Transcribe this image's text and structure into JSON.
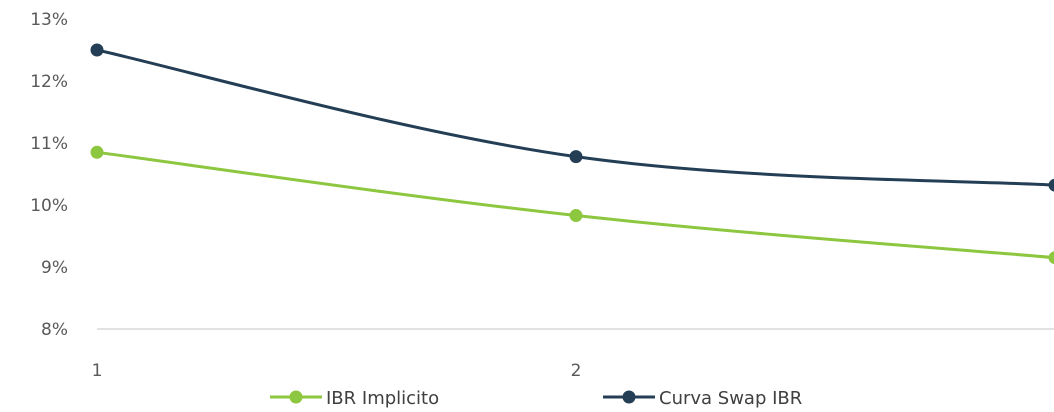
{
  "chart_data": {
    "type": "line",
    "x": [
      1,
      2,
      3
    ],
    "x_tick_labels": [
      "1",
      "2"
    ],
    "ylim": [
      8,
      13
    ],
    "y_tick_values": [
      8,
      9,
      10,
      11,
      12,
      13
    ],
    "y_tick_labels": [
      "8%",
      "9%",
      "10%",
      "11%",
      "12%",
      "13%"
    ],
    "smooth": true,
    "grid": false,
    "legend_position": "bottom",
    "series": [
      {
        "name": "IBR Implicito",
        "color": "#8DC63F",
        "values": [
          10.85,
          9.83,
          9.15
        ]
      },
      {
        "name": "Curva Swap IBR",
        "color": "#243F55",
        "values": [
          12.5,
          10.78,
          10.32
        ]
      }
    ]
  }
}
